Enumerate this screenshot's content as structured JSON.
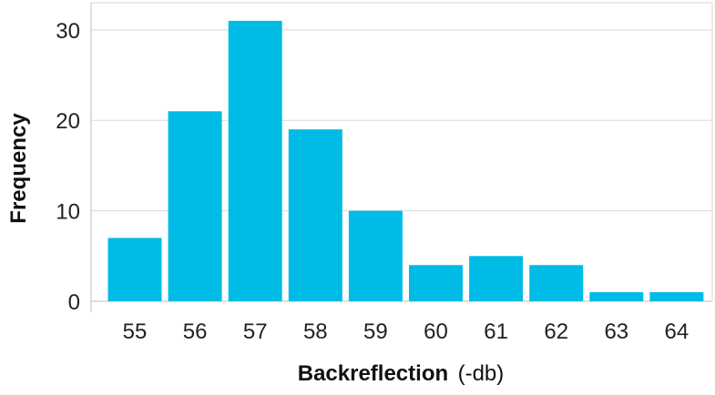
{
  "chart_data": {
    "type": "bar",
    "categories": [
      "55",
      "56",
      "57",
      "58",
      "59",
      "60",
      "61",
      "62",
      "63",
      "64"
    ],
    "values": [
      7,
      21,
      31,
      19,
      10,
      4,
      5,
      4,
      1,
      1
    ],
    "ylabel": "Frequency",
    "xlabel": "Backreflection",
    "xlabel_unit": "(-db)",
    "ylim": [
      0,
      33
    ],
    "yticks": [
      0,
      10,
      20,
      30
    ],
    "grid": true,
    "bar_color": "#00bbe6",
    "grid_color": "#d9d9d9"
  }
}
